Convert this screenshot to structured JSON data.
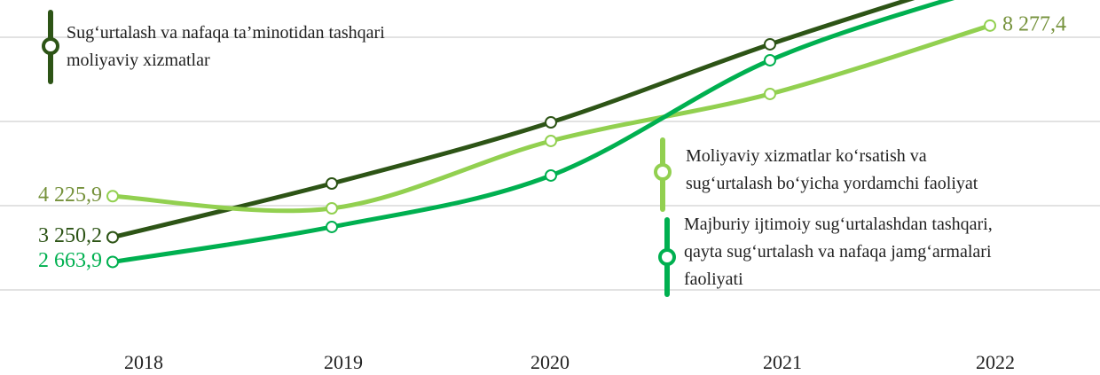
{
  "chart_data": {
    "type": "line",
    "categories": [
      "2018",
      "2019",
      "2020",
      "2021",
      "2022"
    ],
    "series": [
      {
        "name": "Sug‘urtalash va nafaqa ta’minotidan tashqari\nmoliyaviy xizmatlar",
        "color": "#2d5416",
        "label_color": "#2d5416",
        "values": [
          3250.2,
          4526,
          5979,
          7832,
          9500
        ],
        "value_labels": [
          "3 250,2",
          null,
          null,
          null,
          null
        ]
      },
      {
        "name": "Moliyaviy xizmatlar ko‘rsatish va\nsug‘urtalash bo‘yicha yordamchi faoliyat",
        "color": "#92d050",
        "label_color": "#76923c",
        "values": [
          4225.9,
          3937,
          5537,
          6653,
          8277.4
        ],
        "value_labels": [
          "4 225,9",
          null,
          null,
          null,
          "8 277,4"
        ]
      },
      {
        "name": "Majburiy ijtimoiy sug‘urtalashdan tashqari,\nqayta sug‘urtalash va nafaqa jamg‘armalari\nfaoliyati",
        "color": "#00b050",
        "label_color": "#00b050",
        "values": [
          2663.9,
          3495,
          4716,
          7453,
          9200
        ],
        "value_labels": [
          "2 663,9",
          null,
          null,
          null,
          null
        ]
      }
    ],
    "ylim": [
      0,
      8884
    ],
    "yticks": [
      2000,
      4000,
      6000,
      8000
    ],
    "grid": true
  }
}
